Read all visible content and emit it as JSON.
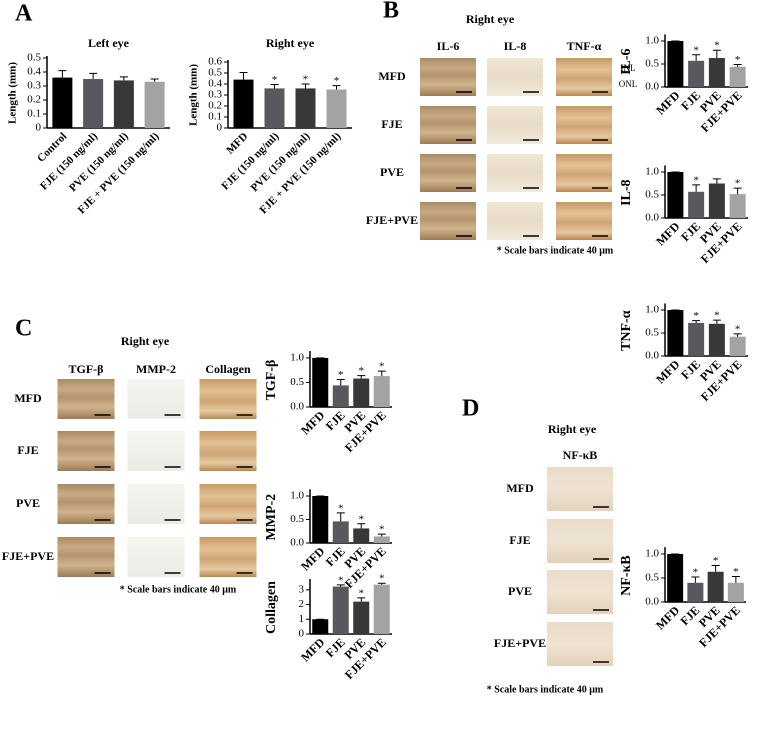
{
  "panel_labels": [
    "A",
    "B",
    "C",
    "D"
  ],
  "image_grids": [
    {
      "title": "Right eye",
      "columns": [
        "IL-6",
        "IL-8",
        "TNF-α"
      ],
      "rows": [
        "MFD",
        "FJE",
        "PVE",
        "FJE+PVE"
      ],
      "layer_labels": [
        "INL",
        "ONL"
      ],
      "note": "* Scale bars indicate 40 μm"
    },
    {
      "title": "Right eye",
      "columns": [
        "TGF-β",
        "MMP-2",
        "Collagen"
      ],
      "rows": [
        "MFD",
        "FJE",
        "PVE",
        "FJE+PVE"
      ],
      "note": "* Scale bars indicate 40 μm"
    },
    {
      "title": "Right eye",
      "columns": [
        "NF-κB"
      ],
      "rows": [
        "MFD",
        "FJE",
        "PVE",
        "FJE+PVE"
      ],
      "note": "* Scale bars indicate 40 μm"
    }
  ],
  "chart_data": [
    {
      "type": "bar",
      "title": "Left eye",
      "y_label": "Length (mm)",
      "categories": [
        "Control",
        "FJE (150 ng/ml)",
        "PVE (150 ng/ml)",
        "FJE + PVE (150 ng/ml)"
      ],
      "values": [
        0.36,
        0.35,
        0.34,
        0.33
      ],
      "errors": [
        0.05,
        0.04,
        0.025,
        0.02
      ],
      "colors": [
        "#000000",
        "#58585e",
        "#38383a",
        "#a3a3a3"
      ],
      "ylim": [
        0,
        0.5
      ],
      "yticks": [
        0,
        0.1,
        0.2,
        0.3,
        0.4,
        0.5
      ]
    },
    {
      "type": "bar",
      "title": "Right eye",
      "y_label": "Length (mm)",
      "categories": [
        "MFD",
        "FJE (150 ng/ml)",
        "PVE (150 ng/ml)",
        "FJE + PVE (150 ng/ml)"
      ],
      "values": [
        0.44,
        0.36,
        0.36,
        0.35
      ],
      "errors": [
        0.065,
        0.035,
        0.04,
        0.035
      ],
      "annotations": [
        null,
        "*",
        "*",
        "*"
      ],
      "colors": [
        "#000000",
        "#58585e",
        "#38383a",
        "#a3a3a3"
      ],
      "ylim": [
        0,
        0.6
      ],
      "yticks": [
        0,
        0.1,
        0.2,
        0.3,
        0.4,
        0.5,
        0.6
      ]
    },
    {
      "type": "bar",
      "y_label": "IL-6",
      "categories": [
        "MFD",
        "FJE",
        "PVE",
        "FJE+PVE"
      ],
      "values": [
        1.0,
        0.57,
        0.63,
        0.44
      ],
      "errors": [
        0,
        0.13,
        0.17,
        0.05
      ],
      "annotations": [
        null,
        "*",
        "*",
        "*"
      ],
      "colors": [
        "#000000",
        "#58585e",
        "#38383a",
        "#a3a3a3"
      ],
      "ylim": [
        0,
        1.1
      ],
      "yticks": [
        {
          "value": 0,
          "label": "0.0"
        },
        {
          "value": 0.5,
          "label": "0.5"
        },
        {
          "value": 1,
          "label": "1.0"
        }
      ]
    },
    {
      "type": "bar",
      "y_label": "IL-8",
      "categories": [
        "MFD",
        "FJE",
        "PVE",
        "FJE+PVE"
      ],
      "values": [
        1.0,
        0.57,
        0.75,
        0.52
      ],
      "errors": [
        0,
        0.15,
        0.1,
        0.13
      ],
      "annotations": [
        null,
        "*",
        null,
        "*"
      ],
      "colors": [
        "#000000",
        "#58585e",
        "#38383a",
        "#a3a3a3"
      ],
      "ylim": [
        0,
        1.1
      ],
      "yticks": [
        {
          "value": 0,
          "label": "0.0"
        },
        {
          "value": 0.5,
          "label": "0.5"
        },
        {
          "value": 1,
          "label": "1.0"
        }
      ]
    },
    {
      "type": "bar",
      "y_label": "TNF-α",
      "categories": [
        "MFD",
        "FJE",
        "PVE",
        "FJE+PVE"
      ],
      "values": [
        1.0,
        0.72,
        0.7,
        0.42
      ],
      "errors": [
        0,
        0.05,
        0.08,
        0.06
      ],
      "annotations": [
        null,
        "*",
        "*",
        "*"
      ],
      "colors": [
        "#000000",
        "#58585e",
        "#38383a",
        "#a3a3a3"
      ],
      "ylim": [
        0,
        1.1
      ],
      "yticks": [
        {
          "value": 0,
          "label": "0.0"
        },
        {
          "value": 0.5,
          "label": "0.5"
        },
        {
          "value": 1,
          "label": "1.0"
        }
      ]
    },
    {
      "type": "bar",
      "y_label": "TGF-β",
      "categories": [
        "MFD",
        "FJE",
        "PVE",
        "FJE+PVE"
      ],
      "values": [
        1.0,
        0.44,
        0.58,
        0.63
      ],
      "errors": [
        0,
        0.12,
        0.06,
        0.1
      ],
      "annotations": [
        null,
        "*",
        "*",
        "*"
      ],
      "colors": [
        "#000000",
        "#58585e",
        "#38383a",
        "#a3a3a3"
      ],
      "ylim": [
        0,
        1.1
      ],
      "yticks": [
        {
          "value": 0,
          "label": "0.0"
        },
        {
          "value": 0.5,
          "label": "0.5"
        },
        {
          "value": 1,
          "label": "1.0"
        }
      ]
    },
    {
      "type": "bar",
      "y_label": "MMP-2",
      "categories": [
        "MFD",
        "FJE",
        "PVE",
        "FJE+PVE"
      ],
      "values": [
        1.0,
        0.46,
        0.31,
        0.14
      ],
      "errors": [
        0,
        0.18,
        0.1,
        0.05
      ],
      "annotations": [
        null,
        "*",
        "*",
        "*"
      ],
      "colors": [
        "#000000",
        "#58585e",
        "#38383a",
        "#a3a3a3"
      ],
      "ylim": [
        0,
        1.1
      ],
      "yticks": [
        {
          "value": 0,
          "label": "0.0"
        },
        {
          "value": 0.5,
          "label": "0.5"
        },
        {
          "value": 1,
          "label": "1.0"
        }
      ]
    },
    {
      "type": "bar",
      "y_label": "Collagen",
      "categories": [
        "MFD",
        "FJE",
        "PVE",
        "FJE+PVE"
      ],
      "values": [
        1.0,
        3.22,
        2.2,
        3.35
      ],
      "errors": [
        0,
        0.12,
        0.25,
        0.1
      ],
      "annotations": [
        null,
        "*",
        "*",
        "*"
      ],
      "colors": [
        "#000000",
        "#58585e",
        "#38383a",
        "#a3a3a3"
      ],
      "ylim": [
        0,
        3.6
      ],
      "yticks": [
        0,
        1,
        2,
        3
      ]
    },
    {
      "type": "bar",
      "y_label": "NF-κB",
      "categories": [
        "MFD",
        "FJE",
        "PVE",
        "FJE+PVE"
      ],
      "values": [
        1.0,
        0.4,
        0.63,
        0.4
      ],
      "errors": [
        0,
        0.12,
        0.13,
        0.13
      ],
      "annotations": [
        null,
        "*",
        "*",
        "*"
      ],
      "colors": [
        "#000000",
        "#58585e",
        "#38383a",
        "#a3a3a3"
      ],
      "ylim": [
        0,
        1.1
      ],
      "yticks": [
        {
          "value": 0,
          "label": "0.0"
        },
        {
          "value": 0.5,
          "label": "0.5"
        },
        {
          "value": 1,
          "label": "1.0"
        }
      ]
    }
  ]
}
